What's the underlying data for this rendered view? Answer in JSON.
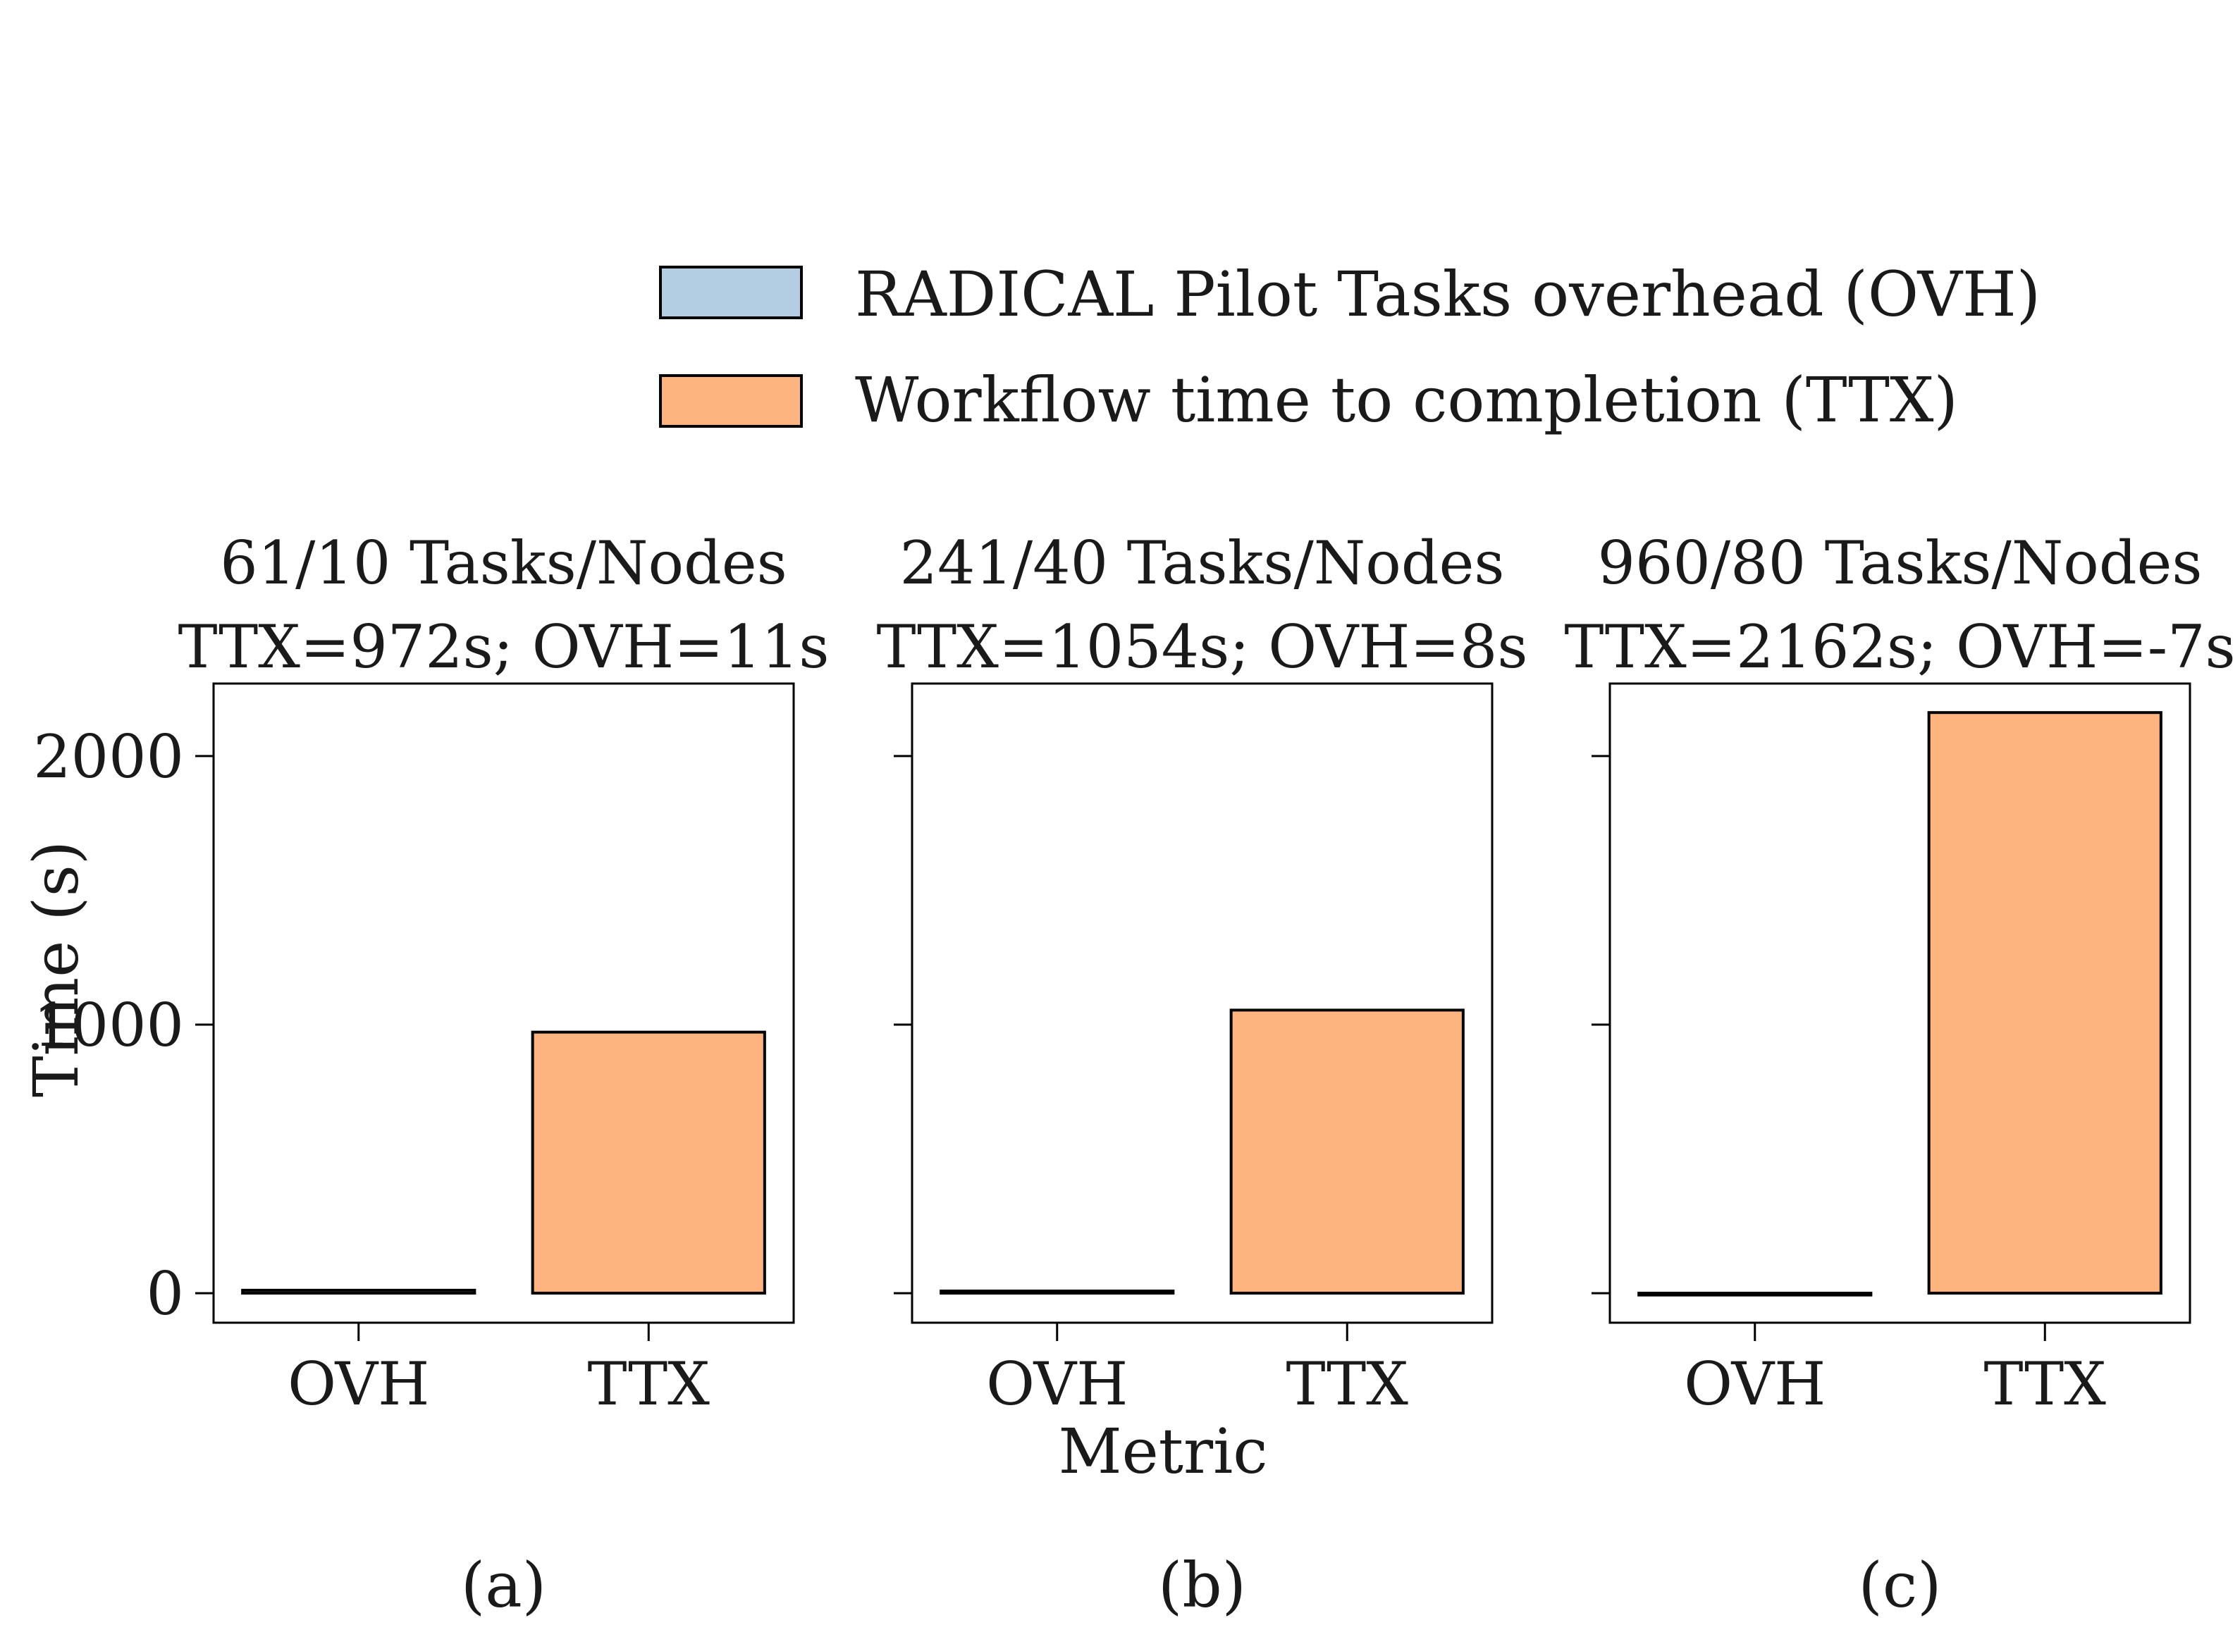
{
  "legend": {
    "items": [
      {
        "label": "RADICAL Pilot Tasks overhead (OVH)",
        "color": "#b3cde3",
        "key": "OVH"
      },
      {
        "label": "Workflow time to completion (TTX)",
        "color": "#fdb47f",
        "key": "TTX"
      }
    ]
  },
  "ylabel": "Time (s)",
  "xlabel": "Metric",
  "chart_data": [
    {
      "type": "bar",
      "title_line1": "61/10 Tasks/Nodes",
      "title_line2": "TTX=972s; OVH=11s",
      "categories": [
        "OVH",
        "TTX"
      ],
      "values": [
        11,
        972
      ],
      "ylim": [
        -110,
        2270
      ],
      "yticks": [
        0,
        1000,
        2000
      ],
      "caption": "(a)"
    },
    {
      "type": "bar",
      "title_line1": "241/40 Tasks/Nodes",
      "title_line2": "TTX=1054s; OVH=8s",
      "categories": [
        "OVH",
        "TTX"
      ],
      "values": [
        8,
        1054
      ],
      "ylim": [
        -110,
        2270
      ],
      "yticks": [
        0,
        1000,
        2000
      ],
      "caption": "(b)"
    },
    {
      "type": "bar",
      "title_line1": "960/80 Tasks/Nodes",
      "title_line2": "TTX=2162s; OVH=-7s",
      "categories": [
        "OVH",
        "TTX"
      ],
      "values": [
        -7,
        2162
      ],
      "ylim": [
        -110,
        2270
      ],
      "yticks": [
        0,
        1000,
        2000
      ],
      "caption": "(c)"
    }
  ]
}
